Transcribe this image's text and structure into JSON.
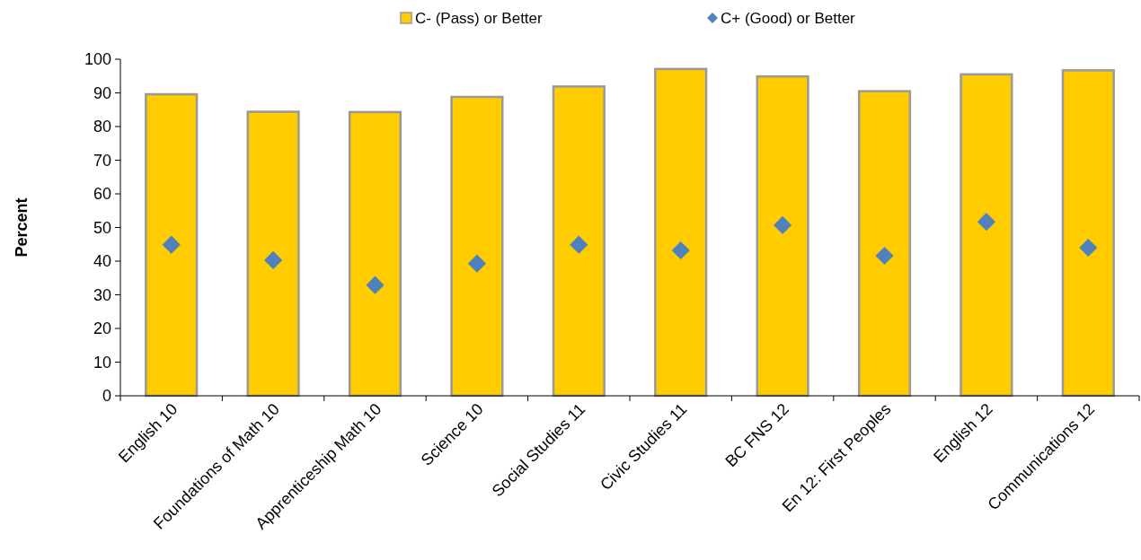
{
  "chart_data": {
    "type": "bar",
    "ylabel": "Percent",
    "categories": [
      "English 10",
      "Foundations of Math 10",
      "Apprenticeship Math 10",
      "Science 10",
      "Social Studies 11",
      "Civic Studies 11",
      "BC FNS 12",
      "En 12: First Peoples",
      "English 12",
      "Communications 12"
    ],
    "series": [
      {
        "name": "C- (Pass) or Better",
        "color": "#ffcc00",
        "values": [
          89.6,
          84.4,
          84.3,
          88.8,
          91.9,
          97.1,
          94.9,
          90.5,
          95.5,
          96.7
        ]
      },
      {
        "name": "C+ (Good) or Better",
        "type": "scatter",
        "marker": "diamond",
        "color": "#4f81bd",
        "values": [
          44.9,
          40.3,
          32.9,
          39.3,
          44.9,
          43.2,
          50.7,
          41.6,
          51.7,
          44.0
        ]
      }
    ],
    "ylim": [
      0,
      100
    ],
    "yticks": [
      0,
      10,
      20,
      30,
      40,
      50,
      60,
      70,
      80,
      90,
      100
    ],
    "grid": false,
    "legend": "top"
  }
}
